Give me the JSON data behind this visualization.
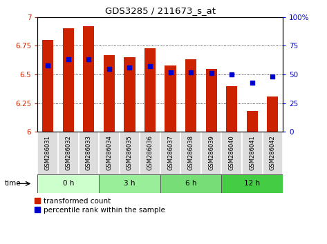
{
  "title": "GDS3285 / 211673_s_at",
  "samples": [
    "GSM286031",
    "GSM286032",
    "GSM286033",
    "GSM286034",
    "GSM286035",
    "GSM286036",
    "GSM286037",
    "GSM286038",
    "GSM286039",
    "GSM286040",
    "GSM286041",
    "GSM286042"
  ],
  "red_values": [
    6.8,
    6.9,
    6.92,
    6.67,
    6.65,
    6.73,
    6.58,
    6.63,
    6.55,
    6.4,
    6.18,
    6.31
  ],
  "blue_values": [
    58,
    63,
    63,
    55,
    56,
    57,
    52,
    52,
    51,
    50,
    43,
    48
  ],
  "ymin": 6.0,
  "ymax": 7.0,
  "y2min": 0,
  "y2max": 100,
  "yticks": [
    6.0,
    6.25,
    6.5,
    6.75,
    7.0
  ],
  "ytick_labels": [
    "6",
    "6.25",
    "6.5",
    "6.75",
    "7"
  ],
  "y2ticks": [
    0,
    25,
    50,
    75,
    100
  ],
  "y2tick_labels": [
    "0",
    "25",
    "50",
    "75",
    "100%"
  ],
  "bar_color": "#CC2200",
  "dot_color": "#0000CC",
  "base_value": 6.0,
  "groups": [
    {
      "label": "0 h",
      "start": 0,
      "end": 3,
      "color": "#CCFFCC"
    },
    {
      "label": "3 h",
      "start": 3,
      "end": 6,
      "color": "#99EE99"
    },
    {
      "label": "6 h",
      "start": 6,
      "end": 9,
      "color": "#77DD77"
    },
    {
      "label": "12 h",
      "start": 9,
      "end": 12,
      "color": "#44CC44"
    }
  ],
  "time_label": "time",
  "grid_color": "#000000",
  "tick_label_color_left": "#CC2200",
  "tick_label_color_right": "#0000CC",
  "legend_red_label": "transformed count",
  "legend_blue_label": "percentile rank within the sample",
  "bar_width": 0.55
}
